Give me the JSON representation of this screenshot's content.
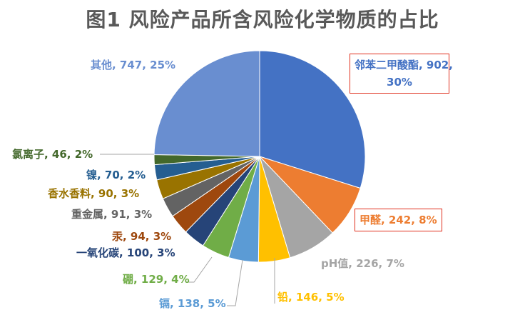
{
  "title": "图1 风险产品所含风险化学物质的占比",
  "chart_data": {
    "type": "pie",
    "title": "图1 风险产品所含风险化学物质的占比",
    "start_angle_deg": 0,
    "direction": "clockwise",
    "slices": [
      {
        "name": "邻苯二甲酸酯",
        "value": 902,
        "percent": "30%",
        "color": "#4472C4",
        "label": "邻苯二甲酸酯, 902,",
        "label2": "30%",
        "highlighted": true
      },
      {
        "name": "甲醛",
        "value": 242,
        "percent": "8%",
        "color": "#ED7D31",
        "label": "甲醛, 242, 8%",
        "highlighted": true
      },
      {
        "name": "pH值",
        "value": 226,
        "percent": "7%",
        "color": "#A5A5A5",
        "label": "pH值, 226, 7%"
      },
      {
        "name": "铅",
        "value": 146,
        "percent": "5%",
        "color": "#FFC000",
        "label": "铅, 146, 5%"
      },
      {
        "name": "镉",
        "value": 138,
        "percent": "5%",
        "color": "#5B9BD5",
        "label": "镉, 138, 5%"
      },
      {
        "name": "硼",
        "value": 129,
        "percent": "4%",
        "color": "#70AD47",
        "label": "硼, 129, 4%"
      },
      {
        "name": "一氧化碳",
        "value": 100,
        "percent": "3%",
        "color": "#264478",
        "label": "一氧化碳, 100, 3%"
      },
      {
        "name": "汞",
        "value": 94,
        "percent": "3%",
        "color": "#9E480E",
        "label": "汞, 94, 3%"
      },
      {
        "name": "重金属",
        "value": 91,
        "percent": "3%",
        "color": "#636363",
        "label": "重金属, 91, 3%"
      },
      {
        "name": "香水香料",
        "value": 90,
        "percent": "3%",
        "color": "#997300",
        "label": "香水香料, 90, 3%"
      },
      {
        "name": "镍",
        "value": 70,
        "percent": "2%",
        "color": "#255E91",
        "label": "镍, 70, 2%"
      },
      {
        "name": "氯离子",
        "value": 46,
        "percent": "2%",
        "color": "#43682B",
        "label": "氯离子, 46, 2%"
      },
      {
        "name": "其他",
        "value": 747,
        "percent": "25%",
        "color": "#698ED0",
        "label": "其他, 747, 25%"
      }
    ]
  }
}
